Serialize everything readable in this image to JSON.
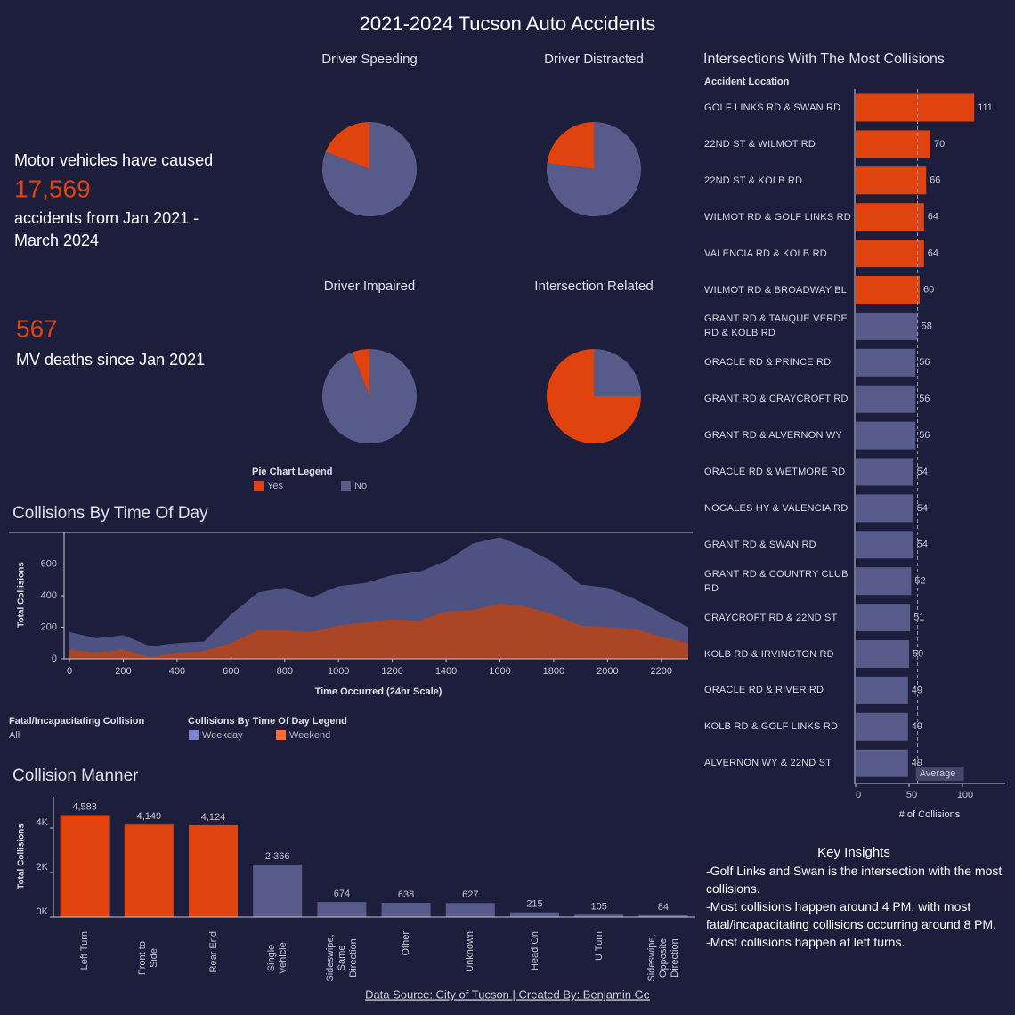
{
  "title": "2021-2024 Tucson Auto Accidents",
  "summary": {
    "line1": "Motor vehicles have caused",
    "accidents": "17,569",
    "line2": "accidents from Jan 2021 - March 2024",
    "deaths": "567",
    "line3": "MV deaths since Jan 2021"
  },
  "pie_legend": {
    "title": "Pie Chart Legend",
    "items": [
      {
        "label": "Yes",
        "color": "#e0430e"
      },
      {
        "label": "No",
        "color": "#575b8a"
      }
    ]
  },
  "chart_data": [
    {
      "type": "pie",
      "title": "Driver Speeding",
      "values": [
        19,
        81
      ]
    },
    {
      "type": "pie",
      "title": "Driver Distracted",
      "values": [
        23,
        77
      ]
    },
    {
      "type": "pie",
      "title": "Driver Impaired",
      "values": [
        6,
        94
      ]
    },
    {
      "type": "pie",
      "title": "Intersection Related",
      "values": [
        75,
        25
      ]
    },
    {
      "type": "area",
      "title": "Collisions By Time Of Day",
      "x": [
        0,
        100,
        200,
        300,
        400,
        500,
        600,
        700,
        800,
        900,
        1000,
        1100,
        1200,
        1300,
        1400,
        1500,
        1600,
        1700,
        1800,
        1900,
        2000,
        2100,
        2200,
        2300
      ],
      "series": [
        {
          "name": "Weekday",
          "color": "#4e5282",
          "values": [
            170,
            130,
            150,
            80,
            100,
            110,
            280,
            420,
            450,
            390,
            460,
            480,
            530,
            550,
            620,
            730,
            770,
            700,
            610,
            470,
            450,
            380,
            290,
            200
          ]
        },
        {
          "name": "Weekend",
          "color": "#b5451b",
          "values": [
            60,
            40,
            60,
            10,
            40,
            50,
            100,
            180,
            180,
            170,
            210,
            230,
            250,
            240,
            300,
            310,
            350,
            330,
            280,
            210,
            200,
            190,
            140,
            100
          ]
        }
      ],
      "xlim": [
        -20,
        2300
      ],
      "xticks": [
        0,
        200,
        400,
        600,
        800,
        1000,
        1200,
        1400,
        1600,
        1800,
        2000,
        2200
      ],
      "ylim": [
        0,
        800
      ],
      "yticks": [
        0,
        200,
        400,
        600
      ],
      "xlabel": "Time Occurred (24hr Scale)",
      "ylabel": "Total Collisions",
      "legend_title": "Collisions By Time Of Day Legend"
    },
    {
      "type": "bar",
      "title": "Collision Manner",
      "categories": [
        "Left Turn",
        "Front to Side",
        "Rear End",
        "Single Vehicle",
        "Sideswipe, Same Direction",
        "Other",
        "Unknown",
        "Head On",
        "U Turn",
        "Sideswipe, Opposite Direction"
      ],
      "values": [
        4583,
        4149,
        4124,
        2366,
        674,
        638,
        627,
        215,
        105,
        84
      ],
      "value_labels": [
        "4,583",
        "4,149",
        "4,124",
        "2,366",
        "674",
        "638",
        "627",
        "215",
        "105",
        "84"
      ],
      "colors": [
        "#e0430e",
        "#e0430e",
        "#e0430e",
        "#575b8a",
        "#575b8a",
        "#575b8a",
        "#575b8a",
        "#575b8a",
        "#575b8a",
        "#575b8a"
      ],
      "ylim": [
        0,
        5400
      ],
      "yticks": [
        {
          "value": 0,
          "label": "0K"
        },
        {
          "value": 2000,
          "label": "2K"
        },
        {
          "value": 4000,
          "label": "4K"
        }
      ],
      "ylabel": "Total Collisions"
    },
    {
      "type": "hbar",
      "title": "Intersections With The Most Collisions",
      "category_label": "Accident Location",
      "categories": [
        "GOLF LINKS RD & SWAN RD",
        "22ND ST & WILMOT RD",
        "22ND ST & KOLB RD",
        "WILMOT RD & GOLF LINKS RD",
        "VALENCIA RD & KOLB RD",
        "WILMOT RD & BROADWAY BL",
        "GRANT RD & TANQUE VERDE RD & KOLB RD",
        "ORACLE RD & PRINCE RD",
        "GRANT RD & CRAYCROFT RD",
        "GRANT RD & ALVERNON WY",
        "ORACLE RD & WETMORE RD",
        "NOGALES HY & VALENCIA RD",
        "GRANT RD & SWAN RD",
        "GRANT RD & COUNTRY CLUB RD",
        "CRAYCROFT RD & 22ND ST",
        "KOLB RD & IRVINGTON RD",
        "ORACLE RD & RIVER RD",
        "KOLB RD & GOLF LINKS RD",
        "ALVERNON WY & 22ND ST"
      ],
      "values": [
        111,
        70,
        66,
        64,
        64,
        60,
        58,
        56,
        56,
        56,
        54,
        54,
        54,
        52,
        51,
        50,
        49,
        49,
        49
      ],
      "colors": [
        "#e0430e",
        "#e0430e",
        "#e0430e",
        "#e0430e",
        "#e0430e",
        "#e0430e",
        "#575b8a",
        "#575b8a",
        "#575b8a",
        "#575b8a",
        "#575b8a",
        "#575b8a",
        "#575b8a",
        "#575b8a",
        "#575b8a",
        "#575b8a",
        "#575b8a",
        "#575b8a",
        "#575b8a"
      ],
      "xlim": [
        0,
        140
      ],
      "xticks": [
        0,
        50,
        100
      ],
      "xlabel": "# of Collisions",
      "reference_line": {
        "label": "Average",
        "value": 58
      }
    }
  ],
  "filter": {
    "label": "Fatal/Incapacitating Collision",
    "value": "All"
  },
  "insights": {
    "title": "Key Insights",
    "items": [
      "-Golf Links and Swan is the intersection with the most collisions.",
      "-Most collisions happen around  4 PM, with most fatal/incapacitating collisions occurring around 8 PM.",
      "-Most collisions happen at left turns."
    ]
  },
  "footer": "Data Source: City of Tucson |  Created By: Benjamin Ge"
}
